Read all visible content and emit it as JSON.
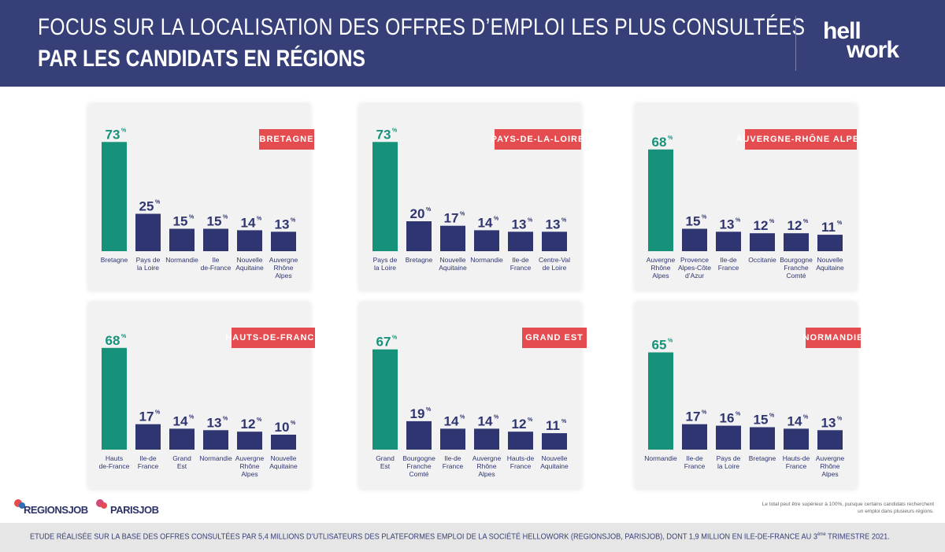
{
  "header": {
    "title_line1": "FOCUS SUR LA LOCALISATION DES OFFRES D’EMPLOI LES PLUS CONSULTÉES",
    "title_line2": "PAR LES CANDIDATS EN RÉGIONS",
    "logo_line1": "hell",
    "logo_line2": "work"
  },
  "colors": {
    "header_bg": "#363f77",
    "highlight_bar": "#16917a",
    "bar": "#2e3570",
    "badge": "#e54c4f",
    "panel_bg": "#f2f2f2"
  },
  "chart_data": [
    {
      "type": "bar",
      "region": "BRETAGNE",
      "categories": [
        [
          "Bretagne"
        ],
        [
          "Pays de",
          "la Loire"
        ],
        [
          "Normandie"
        ],
        [
          "Ile",
          "de-France"
        ],
        [
          "Nouvelle",
          "Aquitaine"
        ],
        [
          "Auvergne",
          "Rhône",
          "Alpes"
        ]
      ],
      "values": [
        73,
        25,
        15,
        15,
        14,
        13
      ],
      "value_labels": [
        "73",
        "25",
        "15",
        "15",
        "14",
        "13"
      ],
      "unit": "%",
      "highlight_index": 0
    },
    {
      "type": "bar",
      "region": "PAYS-DE-LA-LOIRE",
      "categories": [
        [
          "Pays de",
          "la Loire"
        ],
        [
          "Bretagne"
        ],
        [
          "Nouvelle",
          "Aquitaine"
        ],
        [
          "Normandie"
        ],
        [
          "Ile-de",
          "France"
        ],
        [
          "Centre-Val",
          "de Loire"
        ]
      ],
      "values": [
        73,
        20,
        17,
        14,
        13,
        13
      ],
      "value_labels": [
        "73",
        "20",
        "17",
        "14",
        "13",
        "13"
      ],
      "unit": "%",
      "highlight_index": 0
    },
    {
      "type": "bar",
      "region": "AUVERGNE-RHÔNE ALPES",
      "categories": [
        [
          "Auvergne",
          "Rhône",
          "Alpes"
        ],
        [
          "Provence",
          "Alpes-Côte",
          "d’Azur"
        ],
        [
          "Ile-de",
          "France"
        ],
        [
          "Occitanie"
        ],
        [
          "Bourgogne",
          "Franche",
          "Comté"
        ],
        [
          "Nouvelle",
          "Aquitaine"
        ]
      ],
      "values": [
        68,
        15,
        13,
        12,
        12,
        11
      ],
      "value_labels": [
        "68",
        "15",
        "13",
        "12",
        "12",
        "11"
      ],
      "unit": "%",
      "highlight_index": 0
    },
    {
      "type": "bar",
      "region": "HAUTS-DE-FRANCE",
      "categories": [
        [
          "Hauts",
          "de-France"
        ],
        [
          "Ile-de",
          "France"
        ],
        [
          "Grand",
          "Est"
        ],
        [
          "Normandie"
        ],
        [
          "Auvergne",
          "Rhône",
          "Alpes"
        ],
        [
          "Nouvelle",
          "Aquitaine"
        ]
      ],
      "values": [
        68,
        17,
        14,
        13,
        12,
        10
      ],
      "value_labels": [
        "68",
        "17",
        "14",
        "13",
        "12",
        "10"
      ],
      "unit": "%",
      "highlight_index": 0
    },
    {
      "type": "bar",
      "region": "GRAND EST",
      "categories": [
        [
          "Grand",
          "Est"
        ],
        [
          "Bourgogne",
          "Franche",
          "Comté"
        ],
        [
          "Ile-de",
          "France"
        ],
        [
          "Auvergne",
          "Rhône",
          "Alpes"
        ],
        [
          "Hauts-de",
          "France"
        ],
        [
          "Nouvelle",
          "Aquitaine"
        ]
      ],
      "values": [
        67,
        19,
        14,
        14,
        12,
        11
      ],
      "value_labels": [
        "67",
        "19",
        "14",
        "14",
        "12",
        "11"
      ],
      "unit": "%",
      "highlight_index": 0
    },
    {
      "type": "bar",
      "region": "NORMANDIE",
      "categories": [
        [
          "Normandie"
        ],
        [
          "Ile-de",
          "France"
        ],
        [
          "Pays de",
          "la Loire"
        ],
        [
          "Bretagne"
        ],
        [
          "Hauts-de",
          "France"
        ],
        [
          "Auvergne",
          "Rhône",
          "Alpes"
        ]
      ],
      "values": [
        65,
        17,
        16,
        15,
        14,
        13
      ],
      "value_labels": [
        "65",
        "17",
        "16",
        "15",
        "14",
        "13"
      ],
      "unit": "%",
      "highlight_index": 0
    }
  ],
  "footer": {
    "logo_regionsjob": "REGIONSJOB",
    "logo_parisjob": "PARISJOB",
    "note": "Le total peut être supérieur à 100%, puisque certains candidats recherchent un emploi dans plusieurs régions.",
    "study_text": "ETUDE RÉALISÉE SUR LA BASE DES OFFRES CONSULTÉES PAR 5,4 MILLIONS D’UTLISATEURS DES PLATEFORMES EMPLOI DE LA SOCIÉTÉ HELLOWORK (REGIONSJOB, PARISJOB), DONT 1,9 MILLION EN ILE-DE-FRANCE AU 3",
    "study_sup": "ème",
    "study_end": " TRIMESTRE 2021."
  }
}
